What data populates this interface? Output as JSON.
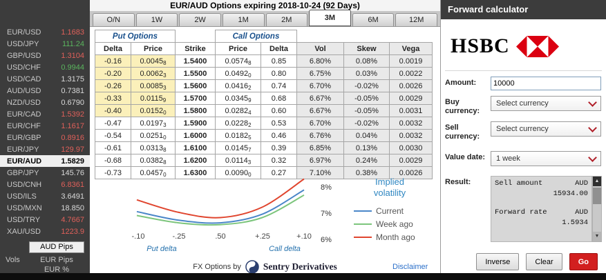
{
  "title": "EUR/AUD Options expiring 2018-10-24 (92 Days)",
  "sidebar": {
    "pairs": [
      {
        "label": "EUR/USD",
        "value": "1.1683",
        "state": "down"
      },
      {
        "label": "USD/JPY",
        "value": "111.24",
        "state": "up"
      },
      {
        "label": "GBP/USD",
        "value": "1.3104",
        "state": "down"
      },
      {
        "label": "USD/CHF",
        "value": "0.9944",
        "state": "up"
      },
      {
        "label": "USD/CAD",
        "value": "1.3175",
        "state": "flat"
      },
      {
        "label": "AUD/USD",
        "value": "0.7381",
        "state": "flat"
      },
      {
        "label": "NZD/USD",
        "value": "0.6790",
        "state": "flat"
      },
      {
        "label": "EUR/CAD",
        "value": "1.5392",
        "state": "down"
      },
      {
        "label": "EUR/CHF",
        "value": "1.1617",
        "state": "down"
      },
      {
        "label": "EUR/GBP",
        "value": "0.8916",
        "state": "down"
      },
      {
        "label": "EUR/JPY",
        "value": "129.97",
        "state": "down"
      },
      {
        "label": "EUR/AUD",
        "value": "1.5829",
        "state": "selected"
      },
      {
        "label": "GBP/JPY",
        "value": "145.76",
        "state": "flat"
      },
      {
        "label": "USD/CNH",
        "value": "6.8361",
        "state": "down"
      },
      {
        "label": "USD/ILS",
        "value": "3.6491",
        "state": "flat"
      },
      {
        "label": "USD/MXN",
        "value": "18.850",
        "state": "flat"
      },
      {
        "label": "USD/TRY",
        "value": "4.7667",
        "state": "down"
      },
      {
        "label": "XAU/USD",
        "value": "1223.9",
        "state": "down"
      }
    ],
    "pips_selected": "AUD Pips",
    "vols_label": "Vols",
    "pips_options": [
      "EUR Pips",
      "EUR %"
    ]
  },
  "tenor_tabs": [
    {
      "label": "O/N",
      "state": "idle"
    },
    {
      "label": "1W",
      "state": "idle"
    },
    {
      "label": "2W",
      "state": "idle"
    },
    {
      "label": "1M",
      "state": "idle"
    },
    {
      "label": "2M",
      "state": "idle"
    },
    {
      "label": "3M",
      "state": "active"
    },
    {
      "label": "6M",
      "state": "idle"
    },
    {
      "label": "12M",
      "state": "idle"
    }
  ],
  "options_table": {
    "group_headers": {
      "put": "Put Options",
      "call": "Call Options"
    },
    "columns": {
      "delta": "Delta",
      "price": "Price",
      "strike": "Strike",
      "vol": "Vol",
      "skew": "Skew",
      "vega": "Vega"
    },
    "rows": [
      {
        "put_delta": "-0.16",
        "put_price": "0.0045",
        "put_price_sub": "8",
        "strike": "1.5400",
        "call_price": "0.0574",
        "call_price_sub": "8",
        "call_delta": "0.85",
        "vol": "6.80%",
        "skew": "0.08%",
        "vega": "0.0019",
        "put_state": "hl"
      },
      {
        "put_delta": "-0.20",
        "put_price": "0.0062",
        "put_price_sub": "3",
        "strike": "1.5500",
        "call_price": "0.0492",
        "call_price_sub": "0",
        "call_delta": "0.80",
        "vol": "6.75%",
        "skew": "0.03%",
        "vega": "0.0022",
        "put_state": "hl"
      },
      {
        "put_delta": "-0.26",
        "put_price": "0.0085",
        "put_price_sub": "3",
        "strike": "1.5600",
        "call_price": "0.0416",
        "call_price_sub": "2",
        "call_delta": "0.74",
        "vol": "6.70%",
        "skew": "-0.02%",
        "vega": "0.0026",
        "put_state": "hl"
      },
      {
        "put_delta": "-0.33",
        "put_price": "0.0115",
        "put_price_sub": "9",
        "strike": "1.5700",
        "call_price": "0.0345",
        "call_price_sub": "9",
        "call_delta": "0.68",
        "vol": "6.67%",
        "skew": "-0.05%",
        "vega": "0.0029",
        "put_state": "hl"
      },
      {
        "put_delta": "-0.40",
        "put_price": "0.0152",
        "put_price_sub": "0",
        "strike": "1.5800",
        "call_price": "0.0282",
        "call_price_sub": "4",
        "call_delta": "0.60",
        "vol": "6.67%",
        "skew": "-0.05%",
        "vega": "0.0031",
        "put_state": "hl"
      },
      {
        "put_delta": "-0.47",
        "put_price": "0.0197",
        "put_price_sub": "3",
        "strike": "1.5900",
        "call_price": "0.0228",
        "call_price_sub": "2",
        "call_delta": "0.53",
        "vol": "6.70%",
        "skew": "-0.02%",
        "vega": "0.0032",
        "put_state": "plain"
      },
      {
        "put_delta": "-0.54",
        "put_price": "0.0251",
        "put_price_sub": "0",
        "strike": "1.6000",
        "call_price": "0.0182",
        "call_price_sub": "5",
        "call_delta": "0.46",
        "vol": "6.76%",
        "skew": "0.04%",
        "vega": "0.0032",
        "put_state": "plain"
      },
      {
        "put_delta": "-0.61",
        "put_price": "0.0313",
        "put_price_sub": "8",
        "strike": "1.6100",
        "call_price": "0.0145",
        "call_price_sub": "7",
        "call_delta": "0.39",
        "vol": "6.85%",
        "skew": "0.13%",
        "vega": "0.0030",
        "put_state": "plain"
      },
      {
        "put_delta": "-0.68",
        "put_price": "0.0382",
        "put_price_sub": "8",
        "strike": "1.6200",
        "call_price": "0.0114",
        "call_price_sub": "3",
        "call_delta": "0.32",
        "vol": "6.97%",
        "skew": "0.24%",
        "vega": "0.0029",
        "put_state": "plain"
      },
      {
        "put_delta": "-0.73",
        "put_price": "0.0457",
        "put_price_sub": "0",
        "strike": "1.6300",
        "call_price": "0.0090",
        "call_price_sub": "0",
        "call_delta": "0.27",
        "vol": "7.10%",
        "skew": "0.38%",
        "vega": "0.0026",
        "put_state": "plain"
      }
    ]
  },
  "chart_data": {
    "type": "line",
    "title": "Implied volatility",
    "x_tick_labels": [
      "-.10",
      "-.25",
      ".50",
      "+.25",
      "+.10"
    ],
    "x_axis_left_label": "Put delta",
    "x_axis_right_label": "Call delta",
    "y_ticks": [
      "6%",
      "7%",
      "8%"
    ],
    "ylim": [
      5.75,
      8.55
    ],
    "legend_position": "right",
    "grid": false,
    "series": [
      {
        "name": "Current",
        "color": "#4a86c8",
        "values": [
          7.05,
          6.72,
          6.62,
          6.95,
          7.88
        ]
      },
      {
        "name": "Week ago",
        "color": "#7cc57c",
        "values": [
          6.9,
          6.62,
          6.55,
          6.82,
          7.68
        ]
      },
      {
        "name": "Month ago",
        "color": "#e0452e",
        "values": [
          7.5,
          7.02,
          6.82,
          7.22,
          8.3
        ]
      }
    ]
  },
  "footer": {
    "prefix": "FX Options by",
    "brand": "Sentry Derivatives",
    "disclaimer": "Disclaimer"
  },
  "calculator": {
    "title": "Forward calculator",
    "logo_text": "HSBC",
    "amount_label": "Amount:",
    "amount_value": "10000",
    "buy_label": "Buy currency:",
    "buy_value": "Select currency",
    "sell_label": "Sell currency:",
    "sell_value": "Select currency",
    "value_date_label": "Value date:",
    "value_date_value": "1 week",
    "result_label": "Result:",
    "result": {
      "sell_amount_label": "Sell amount",
      "sell_amount_ccy": "AUD",
      "sell_amount_value": "15934.00",
      "forward_rate_label": "Forward rate",
      "forward_rate_ccy": "AUD",
      "forward_rate_value": "1.5934"
    },
    "buttons": {
      "inverse": "Inverse",
      "clear": "Clear",
      "go": "Go"
    }
  },
  "colors": {
    "up": "#5ab55e",
    "down": "#e0605a",
    "flat": "#dadada",
    "hsbc_red": "#db0011",
    "highlight_yellow": "#fbf0ba"
  }
}
